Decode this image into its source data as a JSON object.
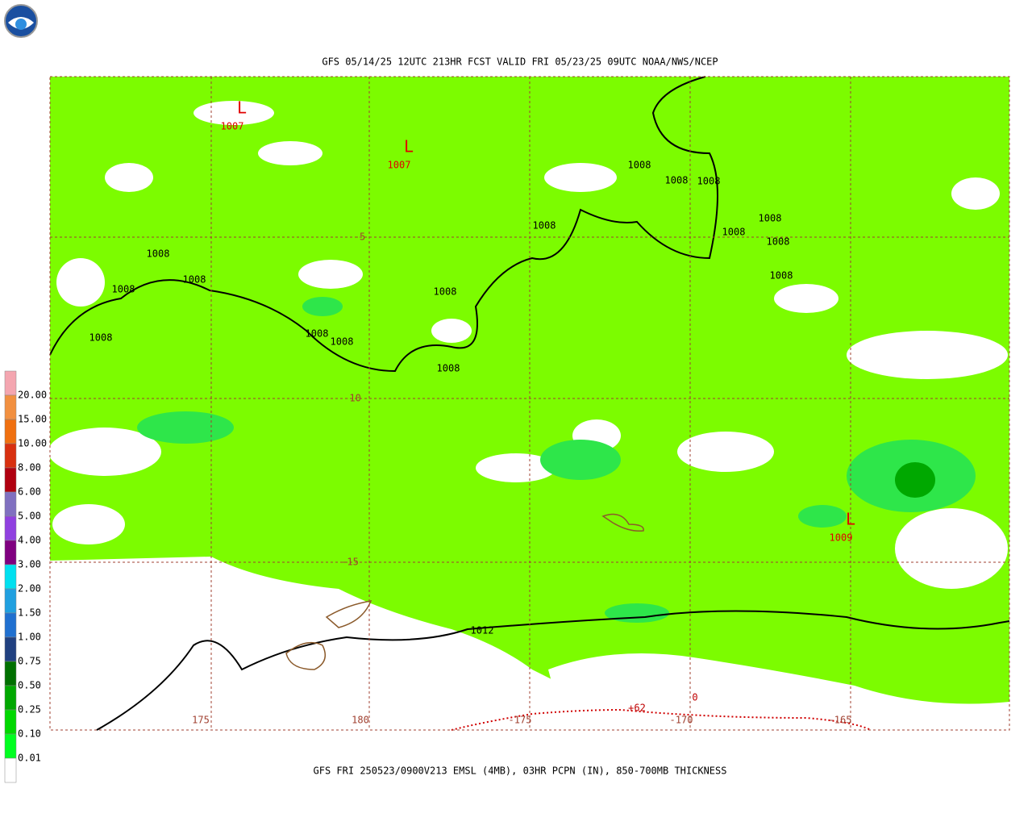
{
  "header": {
    "title": "GFS 05/14/25 12UTC 213HR FCST VALID FRI 05/23/25 09UTC NOAA/NWS/NCEP"
  },
  "footer": {
    "caption": "GFS FRI 250523/0900V213 EMSL (4MB), 03HR PCPN (IN), 850-700MB THICKNESS"
  },
  "legend": {
    "items": [
      {
        "label": "20.00",
        "color": "#f4a6b0"
      },
      {
        "label": "15.00",
        "color": "#f29040"
      },
      {
        "label": "10.00",
        "color": "#f07010"
      },
      {
        "label": "8.00",
        "color": "#d83010"
      },
      {
        "label": "6.00",
        "color": "#b00010"
      },
      {
        "label": "5.00",
        "color": "#8070c0"
      },
      {
        "label": "4.00",
        "color": "#9040e0"
      },
      {
        "label": "3.00",
        "color": "#800080"
      },
      {
        "label": "2.00",
        "color": "#00e0f0"
      },
      {
        "label": "1.50",
        "color": "#20a0e0"
      },
      {
        "label": "1.00",
        "color": "#2070d0"
      },
      {
        "label": "0.75",
        "color": "#204080"
      },
      {
        "label": "0.50",
        "color": "#007000"
      },
      {
        "label": "0.25",
        "color": "#00a800"
      },
      {
        "label": "0.10",
        "color": "#00d800"
      },
      {
        "label": "0.01",
        "color": "#00ff20"
      }
    ],
    "base_color": "#7cfc00",
    "none_color": "#ffffff"
  },
  "map": {
    "lat_labels": [
      "-5",
      "-10",
      "-15"
    ],
    "lon_labels": [
      "175",
      "180",
      "-175",
      "-170",
      "-165"
    ],
    "lows": [
      {
        "symbol": "L",
        "pressure": "1007"
      },
      {
        "symbol": "L",
        "pressure": "1007"
      },
      {
        "symbol": "L",
        "pressure": "1009"
      }
    ],
    "isobar_labels": [
      "1008",
      "1008",
      "1008",
      "1008",
      "1008",
      "1008",
      "1008",
      "1008",
      "1008",
      "1008",
      "1008",
      "1008",
      "1008",
      "1008",
      "1008",
      "1008",
      "1012"
    ],
    "thickness_labels": [
      "+62",
      "0"
    ]
  }
}
